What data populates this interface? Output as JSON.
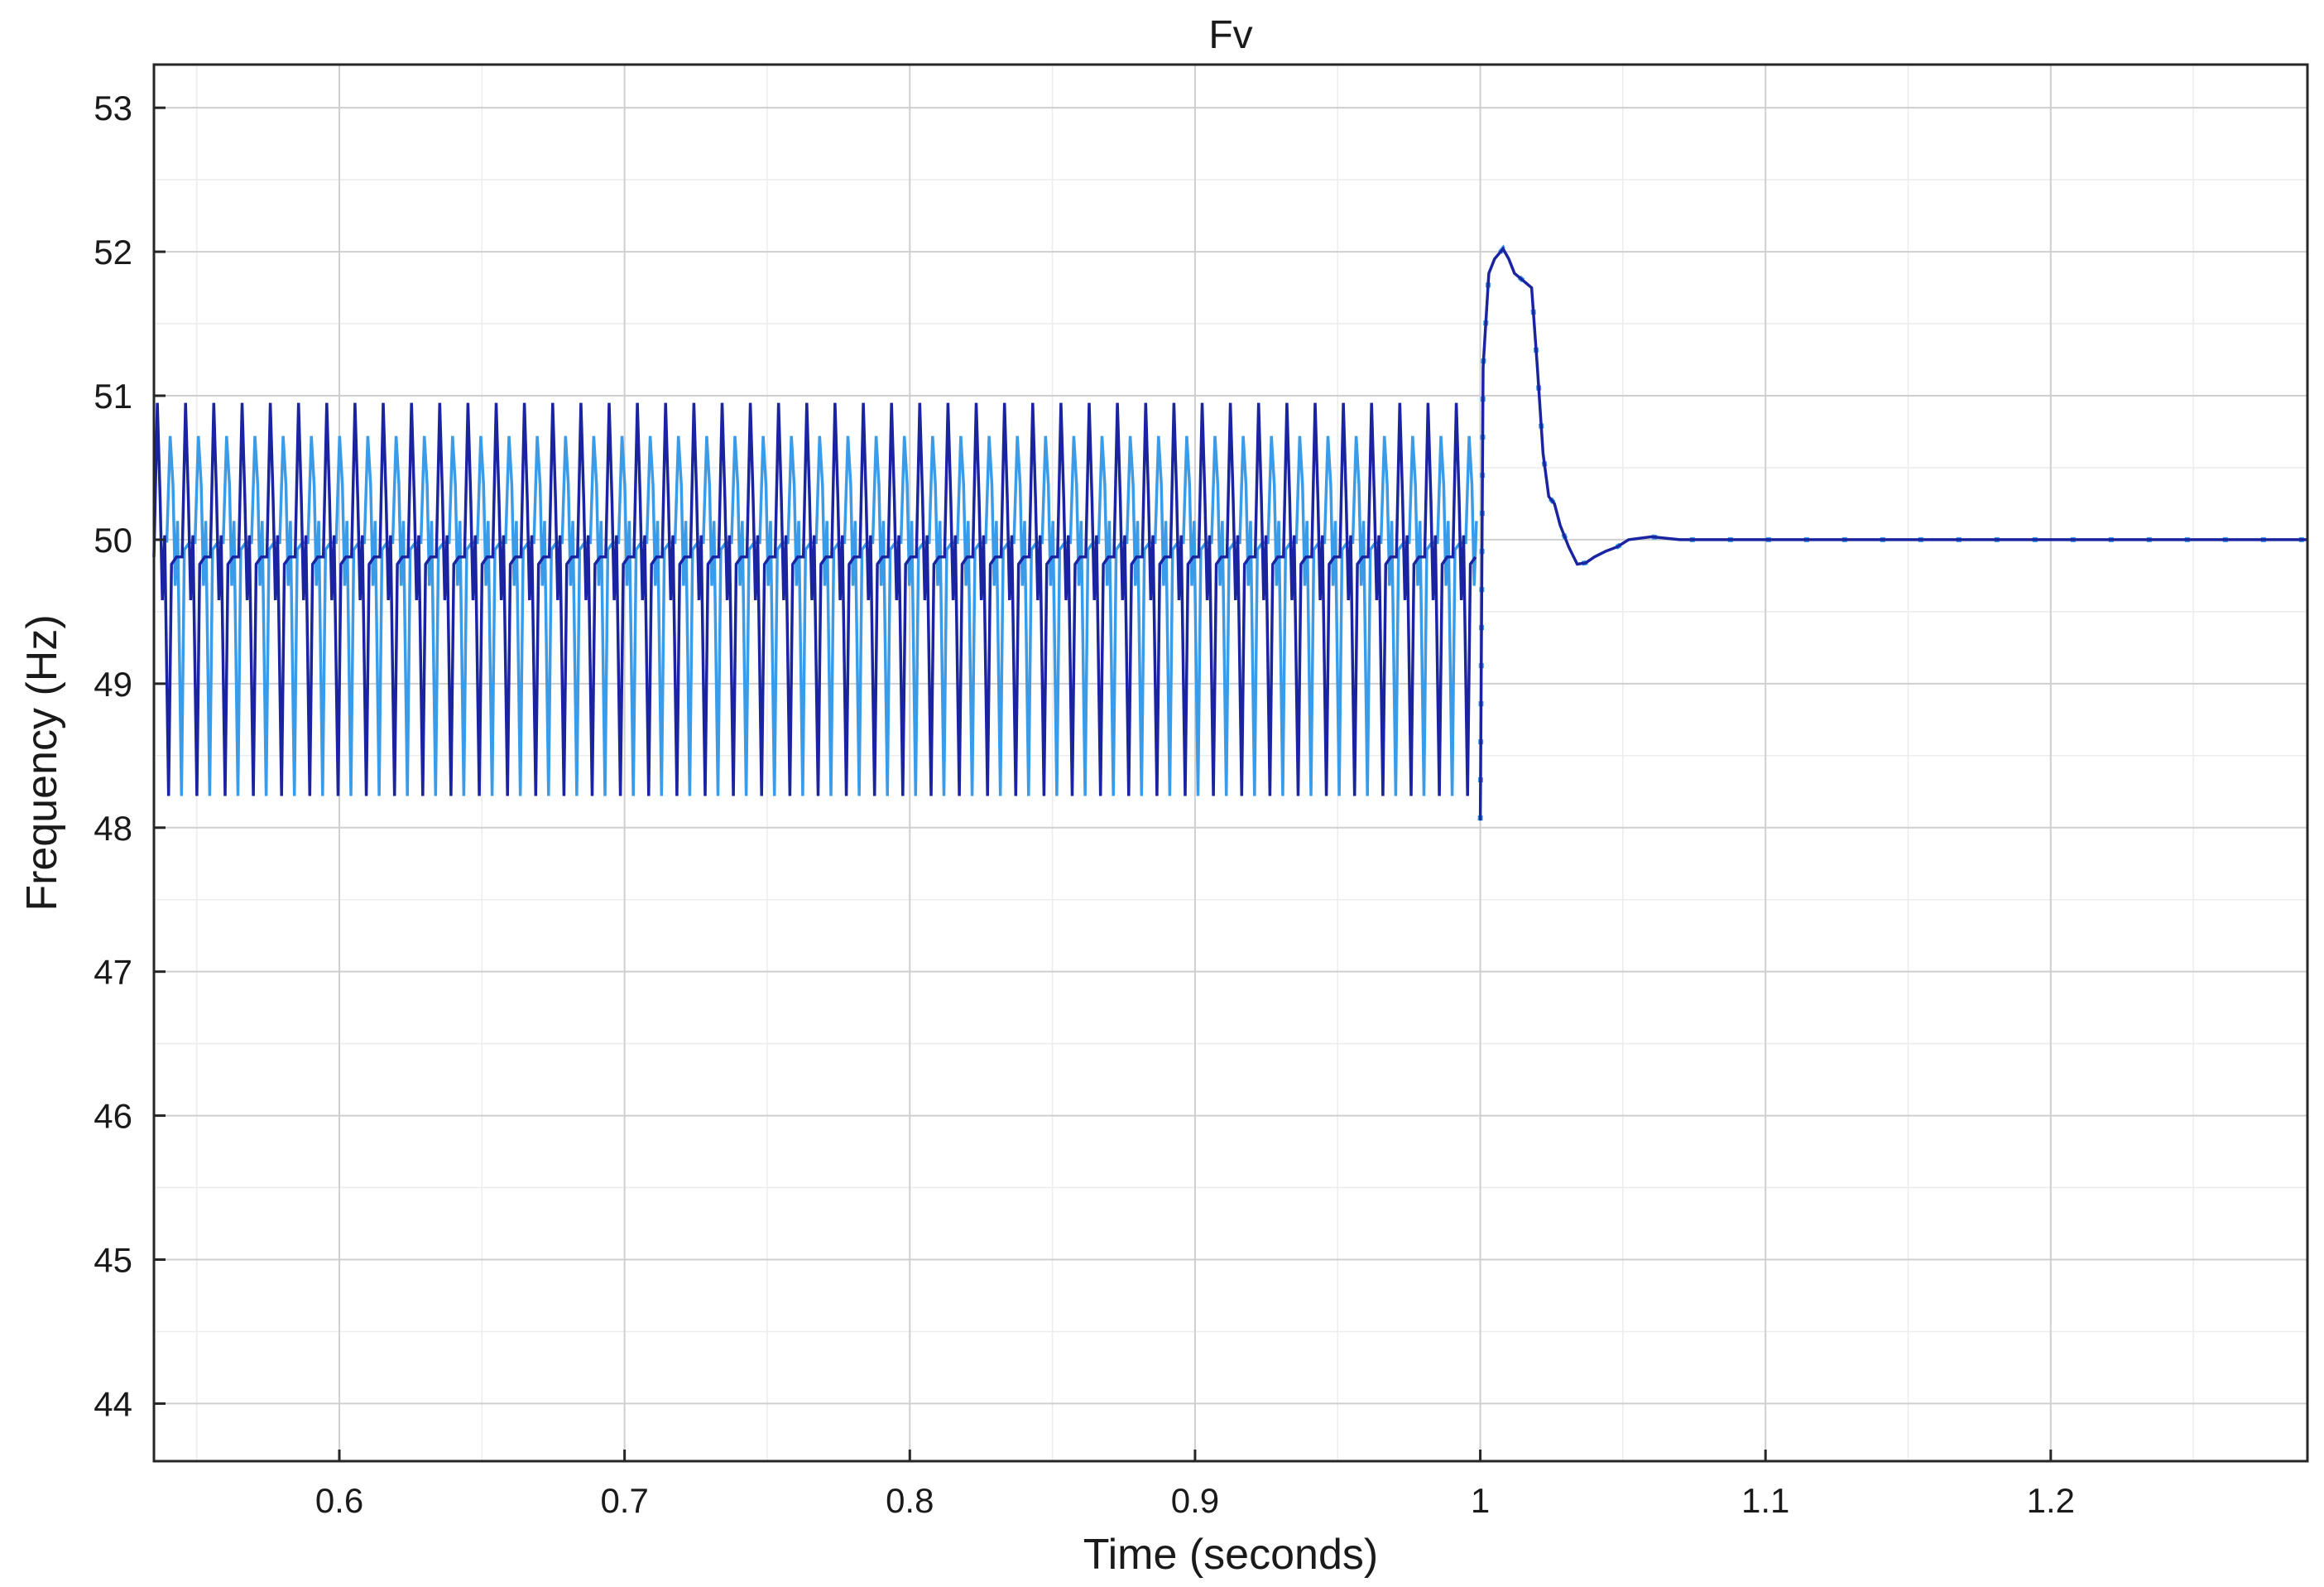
{
  "chart_data": {
    "type": "line",
    "title": "Fv",
    "xlabel": "Time (seconds)",
    "ylabel": "Frequency (Hz)",
    "xlim": [
      0.535,
      1.29
    ],
    "ylim": [
      43.6,
      53.3
    ],
    "xticks": [
      0.6,
      0.7,
      0.8,
      0.9,
      1.0,
      1.1,
      1.2
    ],
    "xtick_labels": [
      "0.6",
      "0.7",
      "0.8",
      "0.9",
      "1",
      "1.1",
      "1.2"
    ],
    "yticks": [
      44,
      45,
      46,
      47,
      48,
      49,
      50,
      51,
      52,
      53
    ],
    "ytick_labels": [
      "44",
      "45",
      "46",
      "47",
      "48",
      "49",
      "50",
      "51",
      "52",
      "53"
    ],
    "grid": true,
    "colors": {
      "series_dark": "#1a23a0",
      "series_light": "#3a9be8",
      "grid": "#cfcfcf",
      "frame": "#262626"
    },
    "oscillation": {
      "t_start": 0.535,
      "t_end": 1.0,
      "period": 0.0099,
      "max": 50.95,
      "min": 48.22,
      "mid": 49.88,
      "light_max": 50.72,
      "light_min": 48.22
    },
    "series": [
      {
        "color": "#1a23a0",
        "x": [
          1.0,
          1.001,
          1.003,
          1.005,
          1.008,
          1.01,
          1.012,
          1.015,
          1.018,
          1.02,
          1.022,
          1.024,
          1.026,
          1.028,
          1.031,
          1.034,
          1.037,
          1.04,
          1.044,
          1.048,
          1.052,
          1.06,
          1.07,
          1.1,
          1.2,
          1.29
        ],
        "y": [
          48.05,
          51.2,
          51.85,
          51.95,
          52.02,
          51.95,
          51.85,
          51.8,
          51.75,
          51.2,
          50.6,
          50.3,
          50.25,
          50.1,
          49.95,
          49.83,
          49.84,
          49.88,
          49.92,
          49.95,
          50.0,
          50.02,
          50.0,
          50.0,
          50.0,
          50.0
        ]
      }
    ]
  }
}
